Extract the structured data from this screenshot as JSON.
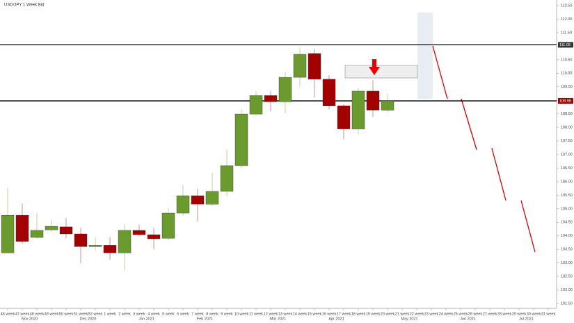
{
  "chart_data": {
    "type": "candlestick",
    "title": "USD/JPY 1 Week Bid",
    "categories": [
      "46 week",
      "47 week",
      "48 week",
      "49 week",
      "50 week",
      "51 week",
      "52 week",
      "1 week",
      "2 week",
      "3 week",
      "4 week",
      "5 week",
      "6 week",
      "7 week",
      "8 week",
      "9 week",
      "10 week",
      "11 week",
      "12 week",
      "13 week",
      "14 week",
      "15 week",
      "16 week",
      "17 week",
      "18 week",
      "19 week",
      "20 week",
      "21 week",
      "22 week",
      "23 week",
      "24 week",
      "25 week",
      "26 week",
      "27 week",
      "28 week",
      "29 week",
      "30 week",
      "31 week"
    ],
    "month_labels": [
      null,
      "Nov 2020",
      null,
      null,
      null,
      "Dec 2020",
      null,
      null,
      null,
      "Jan 2021",
      null,
      null,
      null,
      "Feb 2021",
      null,
      null,
      null,
      null,
      "Mar 2021",
      null,
      null,
      null,
      "Apr 2021",
      null,
      null,
      null,
      null,
      "May 2021",
      null,
      null,
      null,
      "Jun 2021",
      null,
      null,
      null,
      "Jul 2021",
      null,
      null
    ],
    "open": [
      103.37,
      104.76,
      103.94,
      104.22,
      104.33,
      104.07,
      103.6,
      103.65,
      103.37,
      104.2,
      104.04,
      103.91,
      104.84,
      105.48,
      105.17,
      105.64,
      106.59,
      108.49,
      109.18,
      108.95,
      109.85,
      110.73,
      109.78,
      108.8,
      107.95,
      109.34,
      108.64,
      null,
      null,
      null,
      null,
      null,
      null,
      null,
      null,
      null,
      null,
      null
    ],
    "high": [
      105.77,
      105.2,
      104.84,
      104.6,
      104.66,
      104.3,
      103.96,
      103.96,
      104.43,
      104.41,
      104.3,
      105.02,
      105.87,
      105.74,
      106.33,
      107.18,
      108.67,
      109.34,
      109.34,
      110.06,
      110.96,
      110.9,
      109.93,
      108.85,
      109.44,
      109.75,
      109.24,
      null,
      null,
      null,
      null,
      null,
      null,
      null,
      null,
      null,
      null,
      null
    ],
    "low": [
      103.37,
      103.71,
      103.89,
      104.15,
      103.91,
      102.99,
      103.45,
      103.12,
      102.73,
      103.99,
      103.5,
      103.84,
      104.74,
      104.53,
      105.1,
      105.46,
      106.49,
      108.46,
      108.59,
      108.52,
      109.49,
      109.1,
      108.67,
      107.56,
      107.74,
      108.39,
      108.54,
      null,
      null,
      null,
      null,
      null,
      null,
      null,
      null,
      null,
      null,
      null
    ],
    "close": [
      104.76,
      103.79,
      104.2,
      104.35,
      104.07,
      103.6,
      103.65,
      103.37,
      104.2,
      104.04,
      103.89,
      104.84,
      105.48,
      105.17,
      105.64,
      106.59,
      108.49,
      109.18,
      108.95,
      109.85,
      110.7,
      109.78,
      108.8,
      107.95,
      109.34,
      108.64,
      108.98,
      null,
      null,
      null,
      null,
      null,
      null,
      null,
      null,
      null,
      null,
      null
    ],
    "up_color": "#6b9a2f",
    "down_color": "#a30000",
    "hlines": [
      111.05,
      108.98
    ],
    "ylim": [
      101.3,
      112.7
    ],
    "yticks": [
      {
        "value": 101.5,
        "label": "101.50"
      },
      {
        "value": 102,
        "label": "102.00"
      },
      {
        "value": 102.5,
        "label": "102.50"
      },
      {
        "value": 103,
        "label": "103.00"
      },
      {
        "value": 103.5,
        "label": "103.50"
      },
      {
        "value": 104,
        "label": "104.00"
      },
      {
        "value": 104.5,
        "label": "104.50"
      },
      {
        "value": 105,
        "label": "105.00"
      },
      {
        "value": 105.5,
        "label": "105.50"
      },
      {
        "value": 106,
        "label": "106.00"
      },
      {
        "value": 106.5,
        "label": "106.50"
      },
      {
        "value": 107,
        "label": "107.00"
      },
      {
        "value": 107.5,
        "label": "107.50"
      },
      {
        "value": 108,
        "label": "108.00"
      },
      {
        "value": 108.5,
        "label": "108.50"
      },
      {
        "value": 109,
        "label": "109.00"
      },
      {
        "value": 109.5,
        "label": "109.50"
      },
      {
        "value": 110,
        "label": "110.00"
      },
      {
        "value": 110.5,
        "label": "110.50"
      },
      {
        "value": 111,
        "label": "111.00"
      },
      {
        "value": 111.5,
        "label": "111.50"
      },
      {
        "value": 112,
        "label": "112.00"
      },
      {
        "value": 112.5,
        "label": "112.50"
      }
    ]
  }
}
